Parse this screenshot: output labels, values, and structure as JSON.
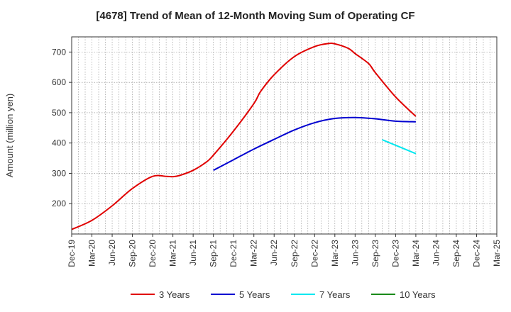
{
  "chart_data": {
    "type": "line",
    "title": "[4678]  Trend of Mean of 12-Month Moving Sum of Operating CF",
    "xlabel": "",
    "ylabel": "Amount (million yen)",
    "ylim": [
      100,
      750
    ],
    "yticks": [
      200,
      300,
      400,
      500,
      600,
      700
    ],
    "x_start": "Dec-19",
    "x_end": "Mar-25",
    "x_tick_labels": [
      "Dec-19",
      "Mar-20",
      "Jun-20",
      "Sep-20",
      "Dec-20",
      "Mar-21",
      "Jun-21",
      "Sep-21",
      "Dec-21",
      "Mar-22",
      "Jun-22",
      "Sep-22",
      "Dec-22",
      "Mar-23",
      "Jun-23",
      "Sep-23",
      "Dec-23",
      "Mar-24",
      "Jun-24",
      "Sep-24",
      "Dec-24",
      "Mar-25"
    ],
    "grid": true,
    "legend_position": "bottom",
    "series": [
      {
        "name": "3 Years",
        "color": "#e00000",
        "points": [
          [
            "Dec-19",
            115
          ],
          [
            "Mar-20",
            145
          ],
          [
            "Jun-20",
            193
          ],
          [
            "Sep-20",
            250
          ],
          [
            "Dec-20",
            290
          ],
          [
            "Feb-21",
            290
          ],
          [
            "Mar-21",
            289
          ],
          [
            "Apr-21",
            293
          ],
          [
            "Jun-21",
            310
          ],
          [
            "Aug-21",
            338
          ],
          [
            "Sep-21",
            360
          ],
          [
            "Dec-21",
            440
          ],
          [
            "Mar-22",
            530
          ],
          [
            "Apr-22",
            570
          ],
          [
            "Jun-22",
            625
          ],
          [
            "Sep-22",
            685
          ],
          [
            "Dec-22",
            718
          ],
          [
            "Feb-23",
            728
          ],
          [
            "Mar-23",
            727
          ],
          [
            "May-23",
            712
          ],
          [
            "Jun-23",
            695
          ],
          [
            "Aug-23",
            662
          ],
          [
            "Sep-23",
            632
          ],
          [
            "Dec-23",
            552
          ],
          [
            "Mar-24",
            488
          ]
        ]
      },
      {
        "name": "5 Years",
        "color": "#0000d0",
        "points": [
          [
            "Sep-21",
            310
          ],
          [
            "Dec-21",
            345
          ],
          [
            "Mar-22",
            380
          ],
          [
            "Jun-22",
            412
          ],
          [
            "Sep-22",
            443
          ],
          [
            "Dec-22",
            467
          ],
          [
            "Mar-23",
            481
          ],
          [
            "Jun-23",
            484
          ],
          [
            "Sep-23",
            480
          ],
          [
            "Dec-23",
            472
          ],
          [
            "Mar-24",
            470
          ]
        ]
      },
      {
        "name": "7 Years",
        "color": "#00e8f0",
        "points": [
          [
            "Oct-23",
            411
          ],
          [
            "Mar-24",
            365
          ]
        ]
      },
      {
        "name": "10 Years",
        "color": "#1a8a1a",
        "points": []
      }
    ]
  }
}
